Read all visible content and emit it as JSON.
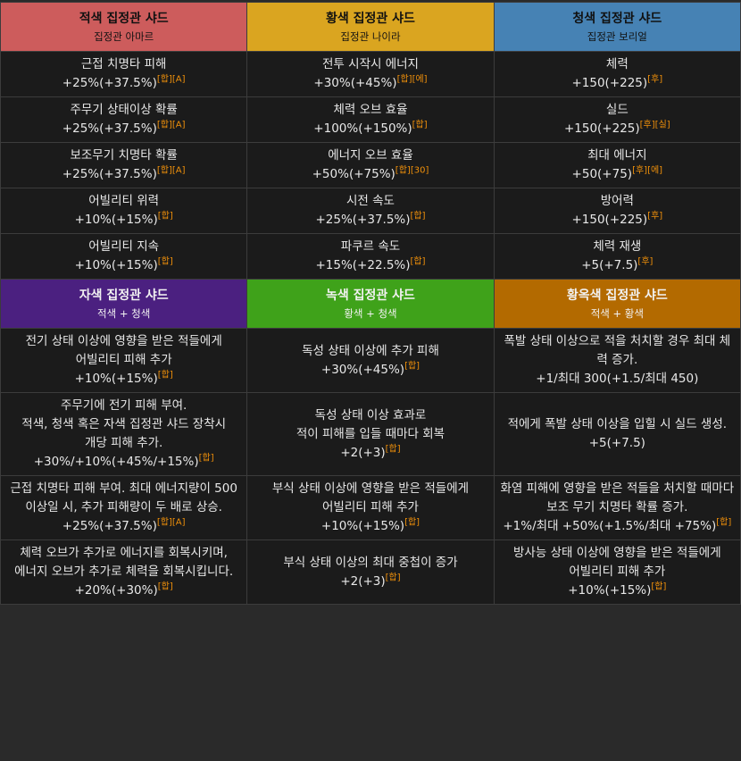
{
  "sections": [
    {
      "headers": [
        {
          "title": "적색 집정관 샤드",
          "subtitle": "집정관 아마르",
          "color": "#cd5c5c"
        },
        {
          "title": "황색 집정관 샤드",
          "subtitle": "집정관 나이라",
          "color": "#daa520"
        },
        {
          "title": "청색 집정관 샤드",
          "subtitle": "집정관 보리얼",
          "color": "#4682b4"
        }
      ],
      "rows": [
        [
          {
            "lines": [
              "근접 치명타 피해"
            ],
            "value": "+25%(+37.5%)",
            "tags": [
              "[합]",
              "[A]"
            ]
          },
          {
            "lines": [
              "전투 시작시 에너지"
            ],
            "value": "+30%(+45%)",
            "tags": [
              "[합]",
              "[에]"
            ]
          },
          {
            "lines": [
              "체력"
            ],
            "value": "+150(+225)",
            "tags": [
              "[후]"
            ]
          }
        ],
        [
          {
            "lines": [
              "주무기 상태이상 확률"
            ],
            "value": "+25%(+37.5%)",
            "tags": [
              "[합]",
              "[A]"
            ]
          },
          {
            "lines": [
              "체력 오브 효율"
            ],
            "value": "+100%(+150%)",
            "tags": [
              "[합]"
            ]
          },
          {
            "lines": [
              "실드"
            ],
            "value": "+150(+225)",
            "tags": [
              "[후]",
              "[실]"
            ]
          }
        ],
        [
          {
            "lines": [
              "보조무기 치명타 확률"
            ],
            "value": "+25%(+37.5%)",
            "tags": [
              "[합]",
              "[A]"
            ]
          },
          {
            "lines": [
              "에너지 오브 효율"
            ],
            "value": "+50%(+75%)",
            "tags": [
              "[합]",
              "[30]"
            ]
          },
          {
            "lines": [
              "최대 에너지"
            ],
            "value": "+50(+75)",
            "tags": [
              "[후]",
              "[에]"
            ]
          }
        ],
        [
          {
            "lines": [
              "어빌리티 위력"
            ],
            "value": "+10%(+15%)",
            "tags": [
              "[합]"
            ]
          },
          {
            "lines": [
              "시전 속도"
            ],
            "value": "+25%(+37.5%)",
            "tags": [
              "[합]"
            ]
          },
          {
            "lines": [
              "방어력"
            ],
            "value": "+150(+225)",
            "tags": [
              "[후]"
            ]
          }
        ],
        [
          {
            "lines": [
              "어빌리티 지속"
            ],
            "value": "+10%(+15%)",
            "tags": [
              "[합]"
            ]
          },
          {
            "lines": [
              "파쿠르 속도"
            ],
            "value": "+15%(+22.5%)",
            "tags": [
              "[합]"
            ]
          },
          {
            "lines": [
              "체력 재생"
            ],
            "value": "+5(+7.5)",
            "tags": [
              "[후]"
            ]
          }
        ]
      ]
    },
    {
      "headers": [
        {
          "title": "자색 집정관 샤드",
          "subtitle": "적색 + 청색",
          "color": "#4b2080"
        },
        {
          "title": "녹색 집정관 샤드",
          "subtitle": "황색 + 청색",
          "color": "#3fa21a"
        },
        {
          "title": "황옥색 집정관 샤드",
          "subtitle": "적색 + 황색",
          "color": "#b36a00"
        }
      ],
      "rows": [
        [
          {
            "lines": [
              "전기 상태 이상에 영향을 받은 적들에게",
              "어빌리티 피해 추가"
            ],
            "value": "+10%(+15%)",
            "tags": [
              "[합]"
            ]
          },
          {
            "lines": [
              "독성 상태 이상에 추가 피해"
            ],
            "value": "+30%(+45%)",
            "tags": [
              "[합]"
            ]
          },
          {
            "lines": [
              "폭발 상태 이상으로 적을 처치할 경우 최대 체력 증가."
            ],
            "value": "+1/최대 300(+1.5/최대 450)",
            "tags": []
          }
        ],
        [
          {
            "lines": [
              "주무기에 전기 피해 부여.",
              "적색, 청색 혹은 자색 집정관 샤드 장착시",
              "개당 피해 추가."
            ],
            "value": "+30%/+10%(+45%/+15%)",
            "tags": [
              "[합]"
            ]
          },
          {
            "lines": [
              "독성 상태 이상 효과로",
              "적이 피해를 입들 때마다 회복"
            ],
            "value": "+2(+3)",
            "tags": [
              "[합]"
            ]
          },
          {
            "lines": [
              "적에게 폭발 상태 이상을 입힐 시 실드 생성."
            ],
            "value": "+5(+7.5)",
            "tags": []
          }
        ],
        [
          {
            "lines": [
              "근접 치명타 피해 부여. 최대 에너지량이 500 이상일 시, 추가 피해량이 두 배로 상승."
            ],
            "value": "+25%(+37.5%)",
            "tags": [
              "[합]",
              "[A]"
            ]
          },
          {
            "lines": [
              "부식 상태 이상에 영향을 받은 적들에게",
              "어빌리티 피해 추가"
            ],
            "value": "+10%(+15%)",
            "tags": [
              "[합]"
            ]
          },
          {
            "lines": [
              "화염 피해에 영향을 받은 적들을 처치할 때마다 보조 무기 치명타 확률 증가."
            ],
            "value": "+1%/최대 +50%(+1.5%/최대 +75%)",
            "tags": [
              "[합]"
            ]
          }
        ],
        [
          {
            "lines": [
              "체력 오브가 추가로 에너지를 회복시키며,",
              "에너지 오브가 추가로 체력을 회복시킵니다."
            ],
            "value": "+20%(+30%)",
            "tags": [
              "[합]"
            ]
          },
          {
            "lines": [
              "부식 상태 이상의 최대 중첩이 증가"
            ],
            "value": "+2(+3)",
            "tags": [
              "[합]"
            ]
          },
          {
            "lines": [
              "방사능 상태 이상에 영향을 받은 적들에게",
              "어빌리티 피해 추가"
            ],
            "value": "+10%(+15%)",
            "tags": [
              "[합]"
            ]
          }
        ]
      ]
    }
  ]
}
